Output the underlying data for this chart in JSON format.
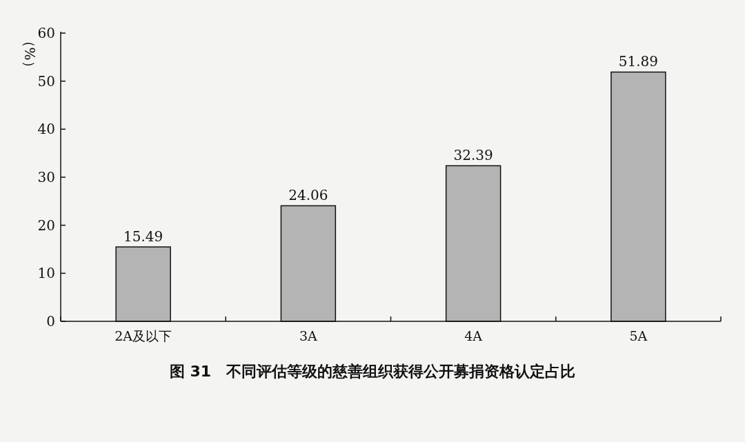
{
  "chart_data": {
    "type": "bar",
    "title": "图 31　不同评估等级的慈善组织获得公开募捐资格认定占比",
    "ylabel": "（%）",
    "categories": [
      "2A及以下",
      "3A",
      "4A",
      "5A"
    ],
    "values": [
      15.49,
      24.06,
      32.39,
      51.89
    ],
    "color": "#b4b4b4",
    "ylim": [
      0,
      60
    ],
    "yticks": [
      0,
      10,
      20,
      30,
      40,
      50,
      60
    ],
    "data_labels": true
  }
}
